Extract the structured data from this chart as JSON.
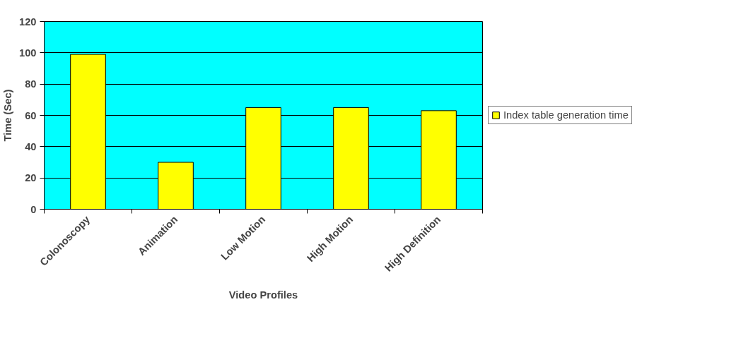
{
  "chart_data": {
    "type": "bar",
    "xlabel": "Video Profiles",
    "ylabel": "Time (Sec)",
    "categories": [
      "Colonoscopy",
      "Animation",
      "Low Motion",
      "High Motion",
      "High Definition"
    ],
    "series": [
      {
        "name": "Index table generation time",
        "color": "#ffff00",
        "values": [
          99,
          30,
          65,
          65,
          63
        ]
      }
    ],
    "ylim": [
      0,
      120
    ],
    "yticks": [
      0,
      20,
      40,
      60,
      80,
      100,
      120
    ],
    "grid": "y",
    "legend": "right"
  }
}
